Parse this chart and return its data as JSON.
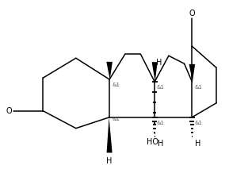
{
  "bg_color": "#ffffff",
  "line_color": "#000000",
  "line_width": 1.1,
  "font_size_label": 7.0,
  "font_size_stereo": 5.0,
  "xlim": [
    0,
    10.5
  ],
  "ylim": [
    0,
    8.0
  ]
}
